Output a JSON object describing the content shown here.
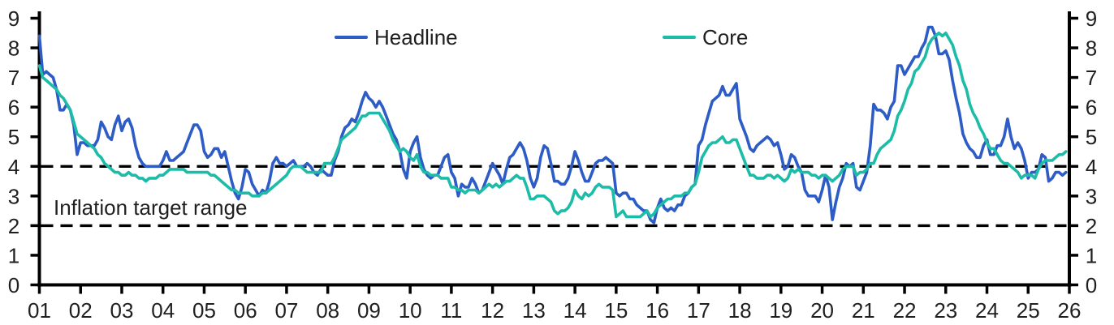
{
  "colors": {
    "background": "#ffffff",
    "axis": "#000000",
    "text": "#1f1f1f",
    "headline": "#2e5cc6",
    "core": "#1dbca8"
  },
  "chart_data": {
    "type": "line",
    "title": "",
    "grid": false,
    "legend_position": "top",
    "x_axis": {
      "unit": "year",
      "range": [
        2001,
        2026
      ],
      "tick_labels": [
        "01",
        "02",
        "03",
        "04",
        "05",
        "06",
        "07",
        "08",
        "09",
        "10",
        "11",
        "12",
        "13",
        "14",
        "15",
        "16",
        "17",
        "18",
        "19",
        "20",
        "21",
        "22",
        "23",
        "24",
        "25",
        "26"
      ]
    },
    "y_axis": {
      "range": [
        0,
        9
      ],
      "sides": [
        "left",
        "right"
      ],
      "tick_labels": [
        "0",
        "1",
        "2",
        "3",
        "4",
        "5",
        "6",
        "7",
        "8",
        "9"
      ]
    },
    "target_range": {
      "label": "Inflation target range",
      "lower": 2,
      "upper": 4,
      "line_style": "dashed",
      "line_color": "#000000"
    },
    "series": [
      {
        "name": "Headline",
        "color": "#2e5cc6",
        "start_year": 2001,
        "frequency": "monthly",
        "values": [
          8.4,
          7.1,
          7.2,
          7.1,
          7.0,
          6.6,
          5.9,
          5.9,
          6.1,
          5.9,
          5.4,
          4.4,
          4.8,
          4.8,
          4.7,
          4.7,
          4.7,
          4.9,
          5.5,
          5.3,
          5.0,
          4.9,
          5.4,
          5.7,
          5.2,
          5.5,
          5.6,
          5.3,
          4.7,
          4.3,
          4.1,
          4.0,
          4.0,
          4.0,
          4.0,
          4.0,
          4.2,
          4.5,
          4.2,
          4.2,
          4.3,
          4.4,
          4.5,
          4.8,
          5.1,
          5.4,
          5.4,
          5.2,
          4.5,
          4.3,
          4.4,
          4.6,
          4.6,
          4.3,
          4.5,
          4.0,
          3.5,
          3.1,
          2.9,
          3.3,
          3.9,
          3.8,
          3.4,
          3.2,
          3.0,
          3.2,
          3.1,
          3.5,
          4.1,
          4.3,
          4.1,
          4.1,
          4.0,
          4.1,
          4.2,
          4.0,
          4.0,
          4.0,
          4.1,
          4.0,
          3.8,
          3.7,
          3.9,
          3.8,
          3.7,
          3.7,
          4.2,
          4.5,
          5.0,
          5.3,
          5.4,
          5.6,
          5.5,
          5.8,
          6.2,
          6.5,
          6.3,
          6.2,
          6.0,
          6.2,
          6.0,
          5.7,
          5.4,
          5.1,
          4.9,
          4.5,
          3.9,
          3.6,
          4.5,
          4.8,
          5.0,
          4.3,
          3.9,
          3.7,
          3.6,
          3.7,
          3.7,
          4.0,
          4.3,
          4.4,
          3.8,
          3.6,
          3.0,
          3.4,
          3.3,
          3.3,
          3.6,
          3.4,
          3.1,
          3.2,
          3.5,
          3.8,
          4.1,
          3.9,
          3.7,
          3.4,
          3.9,
          4.3,
          4.4,
          4.6,
          4.8,
          4.6,
          4.2,
          3.6,
          3.3,
          3.6,
          4.3,
          4.7,
          4.6,
          4.1,
          3.5,
          3.5,
          3.4,
          3.4,
          3.6,
          4.0,
          4.5,
          4.2,
          3.8,
          3.5,
          3.5,
          3.8,
          4.1,
          4.2,
          4.2,
          4.3,
          4.2,
          4.1,
          3.1,
          3.0,
          3.1,
          3.1,
          2.9,
          2.9,
          2.7,
          2.6,
          2.5,
          2.5,
          2.2,
          2.1,
          2.6,
          2.9,
          2.6,
          2.5,
          2.6,
          2.5,
          2.7,
          2.7,
          3.0,
          3.1,
          3.3,
          3.4,
          4.7,
          4.9,
          5.4,
          5.8,
          6.2,
          6.3,
          6.4,
          6.7,
          6.4,
          6.4,
          6.6,
          6.8,
          5.6,
          5.3,
          5.0,
          4.6,
          4.5,
          4.7,
          4.8,
          4.9,
          5.0,
          4.9,
          4.7,
          4.8,
          4.4,
          3.9,
          4.0,
          4.4,
          4.3,
          4.0,
          3.8,
          3.2,
          3.0,
          3.0,
          3.0,
          2.8,
          3.2,
          3.7,
          3.3,
          2.2,
          2.8,
          3.3,
          3.6,
          4.1,
          4.0,
          4.1,
          3.3,
          3.2,
          3.5,
          3.8,
          4.7,
          6.1,
          5.9,
          5.9,
          5.8,
          5.6,
          6.0,
          6.2,
          7.4,
          7.4,
          7.1,
          7.3,
          7.5,
          7.7,
          7.7,
          8.0,
          8.2,
          8.7,
          8.7,
          8.4,
          7.8,
          7.8,
          7.9,
          7.6,
          6.9,
          6.3,
          5.8,
          5.1,
          4.8,
          4.6,
          4.5,
          4.3,
          4.3,
          4.7,
          4.9,
          4.4,
          4.4,
          4.7,
          4.7,
          5.0,
          5.6,
          5.0,
          4.6,
          4.8,
          4.6,
          4.2,
          3.6,
          3.8,
          3.8,
          3.9,
          4.4,
          4.3,
          3.5,
          3.6,
          3.8,
          3.8,
          3.7,
          3.8
        ]
      },
      {
        "name": "Core",
        "color": "#1dbca8",
        "start_year": 2001,
        "frequency": "monthly",
        "values": [
          7.4,
          7.0,
          6.9,
          6.8,
          6.7,
          6.6,
          6.4,
          6.3,
          6.1,
          5.9,
          5.5,
          5.1,
          5.0,
          4.9,
          4.8,
          4.7,
          4.6,
          4.4,
          4.3,
          4.1,
          4.0,
          3.9,
          3.8,
          3.8,
          3.7,
          3.7,
          3.8,
          3.7,
          3.7,
          3.6,
          3.6,
          3.5,
          3.6,
          3.6,
          3.6,
          3.7,
          3.7,
          3.8,
          3.9,
          3.9,
          3.9,
          3.9,
          3.9,
          3.8,
          3.8,
          3.8,
          3.8,
          3.8,
          3.8,
          3.8,
          3.7,
          3.7,
          3.6,
          3.5,
          3.4,
          3.3,
          3.2,
          3.2,
          3.1,
          3.1,
          3.1,
          3.1,
          3.0,
          3.0,
          3.0,
          3.1,
          3.1,
          3.2,
          3.3,
          3.4,
          3.5,
          3.6,
          3.7,
          3.9,
          4.0,
          4.0,
          4.0,
          3.9,
          3.8,
          3.8,
          3.8,
          3.8,
          3.8,
          4.1,
          4.1,
          4.1,
          4.3,
          4.6,
          4.9,
          5.0,
          5.1,
          5.2,
          5.3,
          5.5,
          5.7,
          5.7,
          5.8,
          5.8,
          5.8,
          5.8,
          5.6,
          5.4,
          5.2,
          4.9,
          4.7,
          4.5,
          4.6,
          4.5,
          4.3,
          4.2,
          4.4,
          4.0,
          3.8,
          3.8,
          3.7,
          3.7,
          3.7,
          3.6,
          3.6,
          3.6,
          3.3,
          3.3,
          3.2,
          3.2,
          3.1,
          3.2,
          3.2,
          3.2,
          3.1,
          3.2,
          3.3,
          3.4,
          3.3,
          3.4,
          3.3,
          3.4,
          3.5,
          3.5,
          3.6,
          3.7,
          3.6,
          3.6,
          3.3,
          2.9,
          2.9,
          3.0,
          3.0,
          3.0,
          2.9,
          2.8,
          2.5,
          2.4,
          2.5,
          2.5,
          2.6,
          2.8,
          3.2,
          3.0,
          2.9,
          3.1,
          3.0,
          3.1,
          3.3,
          3.4,
          3.3,
          3.3,
          3.3,
          3.2,
          2.3,
          2.4,
          2.5,
          2.3,
          2.3,
          2.3,
          2.3,
          2.3,
          2.4,
          2.5,
          2.3,
          2.4,
          2.6,
          2.7,
          2.8,
          2.9,
          2.9,
          3.0,
          3.0,
          3.0,
          3.1,
          3.1,
          3.3,
          3.4,
          3.8,
          4.3,
          4.5,
          4.7,
          4.8,
          4.8,
          4.9,
          5.0,
          4.8,
          4.8,
          4.9,
          4.9,
          4.6,
          4.3,
          4.0,
          3.7,
          3.7,
          3.6,
          3.6,
          3.6,
          3.7,
          3.7,
          3.6,
          3.7,
          3.6,
          3.5,
          3.6,
          3.9,
          3.8,
          3.9,
          3.8,
          3.8,
          3.8,
          3.7,
          3.7,
          3.6,
          3.7,
          3.7,
          3.6,
          3.5,
          3.6,
          3.7,
          3.9,
          4.0,
          4.0,
          4.0,
          3.7,
          3.8,
          3.8,
          3.9,
          4.1,
          4.1,
          4.4,
          4.6,
          4.7,
          4.8,
          4.9,
          5.2,
          5.7,
          5.9,
          6.2,
          6.6,
          6.8,
          7.2,
          7.3,
          7.5,
          7.7,
          8.1,
          8.3,
          8.4,
          8.5,
          8.4,
          8.5,
          8.3,
          8.1,
          7.7,
          7.4,
          6.9,
          6.6,
          6.1,
          5.8,
          5.6,
          5.3,
          5.1,
          4.8,
          4.6,
          4.6,
          4.4,
          4.2,
          4.1,
          4.1,
          4.0,
          3.9,
          3.8,
          3.6,
          3.7,
          3.7,
          3.7,
          3.6,
          3.9,
          4.1,
          4.2,
          4.2,
          4.2,
          4.3,
          4.4,
          4.4,
          4.5
        ]
      }
    ]
  }
}
